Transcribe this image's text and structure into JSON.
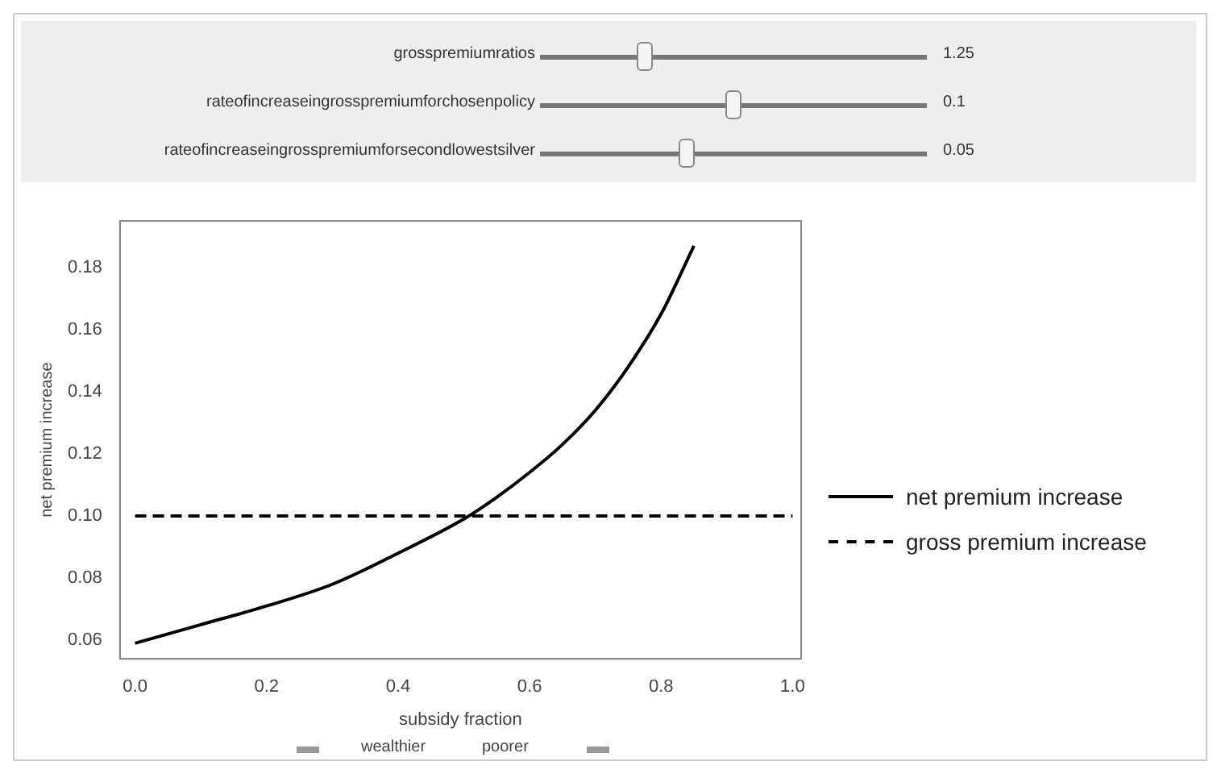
{
  "chart_data": {
    "type": "line",
    "xlabel": "subsidy fraction",
    "ylabel": "net premium increase",
    "xlim": [
      -0.023,
      1.013
    ],
    "ylim": [
      0.054,
      0.195
    ],
    "xticks": [
      {
        "value": 0,
        "label": "0.0"
      },
      0.2,
      0.4,
      0.6,
      0.8,
      {
        "value": 1,
        "label": "1.0"
      }
    ],
    "yticks": [
      0.06,
      0.08,
      {
        "value": 0.1,
        "label": "0.10"
      },
      0.12,
      0.14,
      0.16,
      0.18
    ],
    "grid": false,
    "legend": "right",
    "marker": "none",
    "series": [
      {
        "name": "net premium increase",
        "color": "#000000",
        "line_style": "solid",
        "x": [
          0,
          0.1,
          0.2,
          0.3,
          0.4,
          0.5,
          0.55,
          0.6,
          0.65,
          0.7,
          0.75,
          0.8,
          0.85
        ],
        "values": [
          0.059,
          0.065,
          0.071,
          0.078,
          0.088,
          0.099,
          0.106,
          0.114,
          0.123,
          0.134,
          0.148,
          0.165,
          0.187
        ]
      },
      {
        "name": "gross premium increase",
        "color": "#000000",
        "line_style": "dashed",
        "x": [
          0,
          1
        ],
        "values": [
          0.1,
          0.1
        ]
      }
    ],
    "annotations": [
      "grosspremiumratios",
      "rateofincreaseingrosspremiumforchosenpolicy",
      "rateofincreaseingrosspremiumforsecondlowestsilver",
      "1.25",
      "0.1",
      "0.05",
      "wealthier",
      "poorer"
    ]
  }
}
